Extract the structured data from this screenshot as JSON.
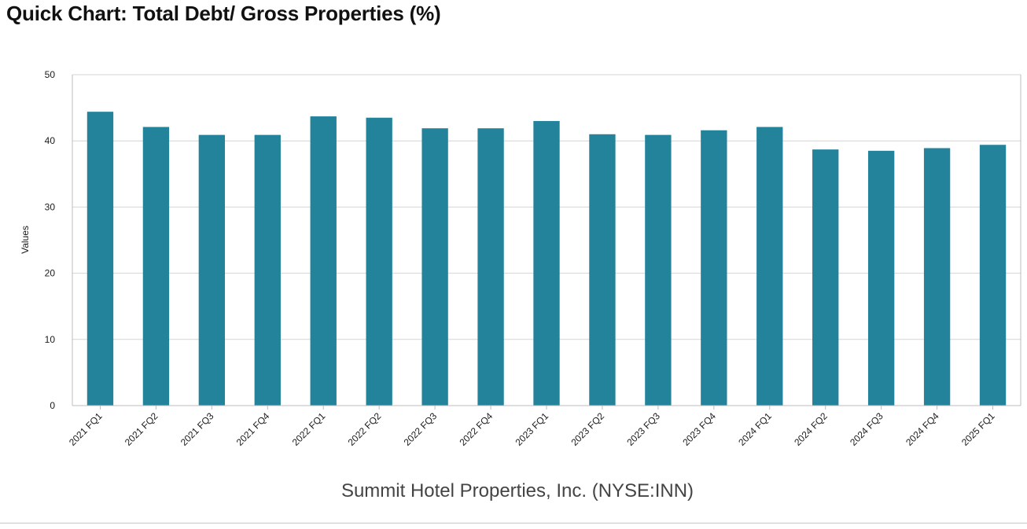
{
  "page": {
    "title": "Quick Chart: Total Debt/ Gross Properties (%)"
  },
  "chart_data": {
    "type": "bar",
    "title": "Quick Chart: Total Debt/ Gross Properties (%)",
    "subtitle": "Summit Hotel Properties, Inc. (NYSE:INN)",
    "xlabel": "",
    "ylabel": "Values",
    "ylim": [
      0,
      50
    ],
    "yticks": [
      0,
      10,
      20,
      30,
      40,
      50
    ],
    "grid": true,
    "categories": [
      "2021 FQ1",
      "2021 FQ2",
      "2021 FQ3",
      "2021 FQ4",
      "2022 FQ1",
      "2022 FQ2",
      "2022 FQ3",
      "2022 FQ4",
      "2023 FQ1",
      "2023 FQ2",
      "2023 FQ3",
      "2023 FQ4",
      "2024 FQ1",
      "2024 FQ2",
      "2024 FQ3",
      "2024 FQ4",
      "2025 FQ1"
    ],
    "values": [
      44.4,
      42.1,
      40.9,
      40.9,
      43.7,
      43.5,
      41.9,
      41.9,
      43.0,
      41.0,
      40.9,
      41.6,
      42.1,
      38.7,
      38.5,
      38.9,
      39.4
    ],
    "colors": {
      "bar": "#23839b",
      "grid": "#d4d4d4",
      "axis": "#bdbdbd",
      "text": "#1a1a1a",
      "subtitle": "#444444"
    }
  }
}
